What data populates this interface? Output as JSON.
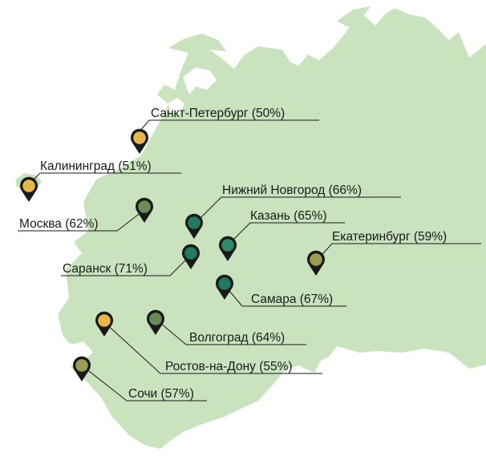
{
  "colors": {
    "land": "#c8e3bd",
    "sea": "#ffffff",
    "pin_yellow": "#e6b84a",
    "pin_olive": "#9b9d55",
    "pin_green": "#6b8c57",
    "pin_teal": "#1f7a5e",
    "pin_teal_light": "#2d8a6a"
  },
  "cities": [
    {
      "id": "spb",
      "label": "Санкт-Петербург (50%)",
      "value": 50,
      "color": "yellow"
    },
    {
      "id": "kaliningrad",
      "label": "Калининград (51%)",
      "value": 51,
      "color": "yellow"
    },
    {
      "id": "moscow",
      "label": "Москва (62%)",
      "value": 62,
      "color": "green"
    },
    {
      "id": "nn",
      "label": "Нижний Новгород (66%)",
      "value": 66,
      "color": "teal"
    },
    {
      "id": "kazan",
      "label": "Казань (65%)",
      "value": 65,
      "color": "teal_light"
    },
    {
      "id": "ekb",
      "label": "Екатеринбург (59%)",
      "value": 59,
      "color": "olive"
    },
    {
      "id": "saransk",
      "label": "Саранск (71%)",
      "value": 71,
      "color": "teal"
    },
    {
      "id": "samara",
      "label": "Самара (67%)",
      "value": 67,
      "color": "teal"
    },
    {
      "id": "volgograd",
      "label": "Волгоград (64%)",
      "value": 64,
      "color": "green"
    },
    {
      "id": "rostov",
      "label": "Ростов-на-Дону (55%)",
      "value": 55,
      "color": "yellow"
    },
    {
      "id": "sochi",
      "label": "Сочи (57%)",
      "value": 57,
      "color": "olive"
    }
  ]
}
